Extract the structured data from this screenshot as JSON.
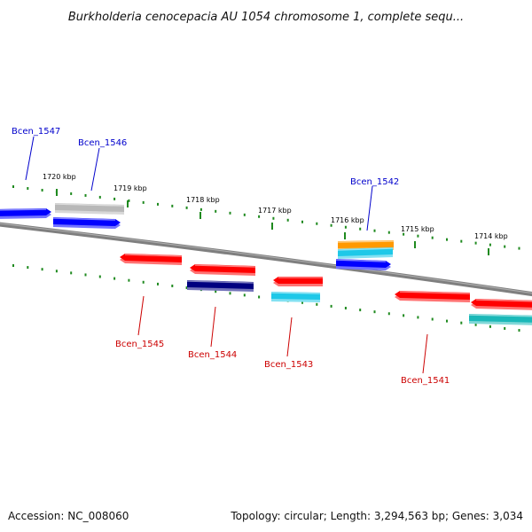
{
  "title": "Burkholderia cenocepacia AU 1054 chromosome 1, complete sequ...",
  "footer": {
    "accession": "Accession: NC_008060",
    "summary": "Topology: circular; Length: 3,294,563 bp; Genes: 3,034"
  },
  "colors": {
    "forward_label": "#0000cc",
    "reverse_label": "#cc0000",
    "tick": "#1f8a1f",
    "backbone": "#7f7f7f",
    "red": "#ff0000",
    "blue": "#0000ff",
    "navy": "#000080",
    "cyan": "#1ec8e8",
    "teal": "#1ab8b8",
    "gray": "#b8b8b8",
    "orange": "#ff9900"
  },
  "scale": {
    "ticks": [
      {
        "label": "1720 kbp"
      },
      {
        "label": "1719 kbp"
      },
      {
        "label": "1718 kbp"
      },
      {
        "label": "1717 kbp"
      },
      {
        "label": "1716 kbp"
      },
      {
        "label": "1715 kbp"
      },
      {
        "label": "1714 kbp"
      }
    ]
  },
  "genes": [
    {
      "label": "Bcen_1547",
      "strand": "forward",
      "color": "blue"
    },
    {
      "label": "Bcen_1546",
      "strand": "forward",
      "color": "blue"
    },
    {
      "label": "Bcen_1545",
      "strand": "reverse",
      "color": "red"
    },
    {
      "label": "Bcen_1544",
      "strand": "reverse",
      "color": "red"
    },
    {
      "label": "Bcen_1543",
      "strand": "reverse",
      "color": "red"
    },
    {
      "label": "Bcen_1542",
      "strand": "forward",
      "color": "blue"
    },
    {
      "label": "Bcen_1541",
      "strand": "reverse",
      "color": "red"
    }
  ]
}
